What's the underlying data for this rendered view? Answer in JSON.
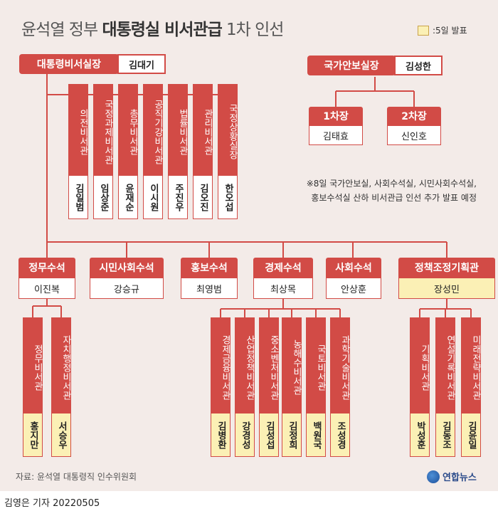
{
  "title": {
    "normal_prefix": "윤석열 정부 ",
    "bold": "대통령실 비서관급",
    "normal_suffix": " 1차 인선"
  },
  "legend": {
    "label": ":5일 발표",
    "color": "#fbf0b5"
  },
  "colors": {
    "accent": "#d24b46",
    "background": "#f3ebe8",
    "highlight": "#fbf0b5"
  },
  "chief_of_staff": {
    "title": "대통령비서실장",
    "name": "김대기",
    "direct": [
      {
        "title": "의전비서관",
        "name": "김일범"
      },
      {
        "title": "국정과제비서관",
        "name": "임상준"
      },
      {
        "title": "총무비서관",
        "name": "윤재순"
      },
      {
        "title": "공직기강비서관",
        "name": "이시원"
      },
      {
        "title": "법률비서관",
        "name": "주진우"
      },
      {
        "title": "관리비서관",
        "name": "김오진"
      },
      {
        "title": "국정상황실장",
        "name": "한오섭"
      }
    ]
  },
  "security": {
    "title": "국가안보실장",
    "name": "김성한",
    "deputies": [
      {
        "title": "1차장",
        "name": "김태효"
      },
      {
        "title": "2차장",
        "name": "신인호"
      }
    ]
  },
  "note": {
    "line1": "※8일 국가안보실, 사회수석실, 시민사회수석실,",
    "line2": "홍보수석실 산하 비서관급 인선 추가 발표 예정"
  },
  "senior_secretaries": [
    {
      "title": "정무수석",
      "name": "이진복"
    },
    {
      "title": "시민사회수석",
      "name": "강승규"
    },
    {
      "title": "홍보수석",
      "name": "최영범"
    },
    {
      "title": "경제수석",
      "name": "최상목"
    },
    {
      "title": "사회수석",
      "name": "안상훈"
    },
    {
      "title": "정책조정기획관",
      "name": "장성민"
    }
  ],
  "political_secretaries": [
    {
      "title": "정무비서관",
      "name": "홍지만"
    },
    {
      "title": "자치행정비서관",
      "name": "서승우"
    }
  ],
  "economic_secretaries": [
    {
      "title": "경제금융비서관",
      "name": "김병환"
    },
    {
      "title": "산업정책비서관",
      "name": "강경성"
    },
    {
      "title": "중소벤처비서관",
      "name": "김성섭"
    },
    {
      "title": "농해수비서관",
      "name": "김정희"
    },
    {
      "title": "국토비서관",
      "name": "백원국"
    },
    {
      "title": "과학기술비서관",
      "name": "조성경"
    }
  ],
  "policy_secretaries": [
    {
      "title": "기획비서관",
      "name": "박성훈"
    },
    {
      "title": "연설기록비서관",
      "name": "김동조"
    },
    {
      "title": "미래전략비서관",
      "name": "김윤일"
    }
  ],
  "footer": {
    "source": "자료: 윤석열 대통령직 인수위원회",
    "logo": "연합뉴스",
    "credit": "김영은 기자  20220505"
  }
}
